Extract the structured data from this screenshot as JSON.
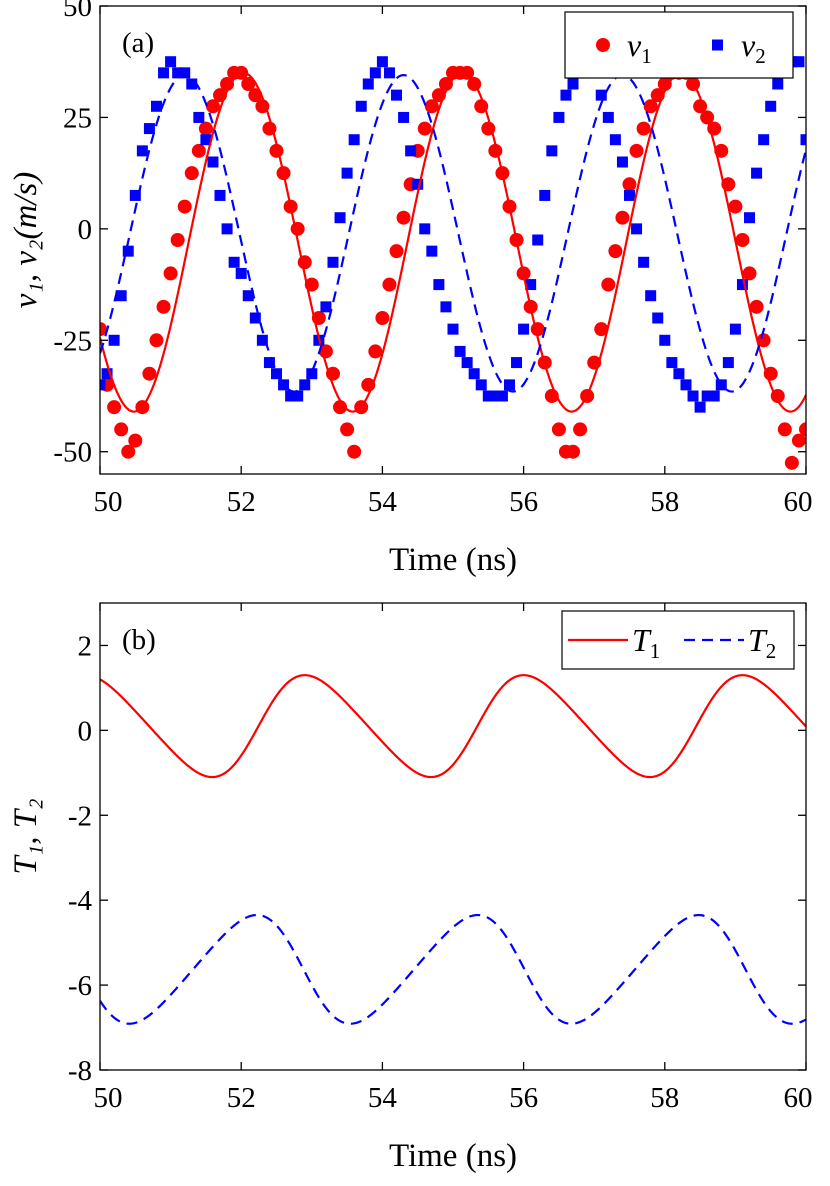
{
  "chart_data": [
    {
      "type": "line",
      "panel_label": "(a)",
      "xlabel": "Time (ns)",
      "ylabel": "v₁, v₂(m/s)",
      "xlim": [
        50,
        60
      ],
      "ylim": [
        -55,
        50
      ],
      "x_ticks": [
        50,
        52,
        54,
        56,
        58,
        60
      ],
      "x_tick_labels": [
        "50",
        "52",
        "54",
        "56",
        "58",
        "60"
      ],
      "y_ticks": [
        -50,
        -25,
        0,
        25,
        50
      ],
      "y_tick_labels": [
        "-50",
        "-25",
        "0",
        "25",
        "50"
      ],
      "legend_position": "top-right",
      "legend": [
        {
          "symbol": "v",
          "subscript": "1",
          "marker": "circle",
          "color": "#ff0000"
        },
        {
          "symbol": "v",
          "subscript": "2",
          "marker": "square",
          "color": "#0000ff"
        }
      ],
      "series": [
        {
          "name": "v1",
          "style": "markers",
          "marker": "circle",
          "color": "#ff0000",
          "x": [
            50.0,
            50.1,
            50.2,
            50.3,
            50.4,
            50.5,
            50.6,
            50.7,
            50.8,
            50.9,
            51.0,
            51.1,
            51.2,
            51.3,
            51.4,
            51.5,
            51.6,
            51.7,
            51.8,
            51.9,
            52.0,
            52.1,
            52.2,
            52.3,
            52.4,
            52.5,
            52.6,
            52.7,
            52.8,
            52.9,
            53.0,
            53.1,
            53.2,
            53.3,
            53.4,
            53.5,
            53.6,
            53.7,
            53.8,
            53.9,
            54.0,
            54.1,
            54.2,
            54.3,
            54.4,
            54.5,
            54.6,
            54.7,
            54.8,
            54.9,
            55.0,
            55.1,
            55.2,
            55.3,
            55.4,
            55.5,
            55.6,
            55.7,
            55.8,
            55.9,
            56.0,
            56.1,
            56.2,
            56.3,
            56.4,
            56.5,
            56.6,
            56.7,
            56.8,
            56.9,
            57.0,
            57.1,
            57.2,
            57.3,
            57.4,
            57.5,
            57.6,
            57.7,
            57.8,
            57.9,
            58.0,
            58.1,
            58.2,
            58.3,
            58.4,
            58.5,
            58.6,
            58.7,
            58.8,
            58.9,
            59.0,
            59.1,
            59.2,
            59.3,
            59.4,
            59.5,
            59.6,
            59.7,
            59.8,
            59.9,
            60.0
          ],
          "values": [
            -22.5,
            -35,
            -40,
            -45,
            -50,
            -47.5,
            -40,
            -32.5,
            -25,
            -17.5,
            -10,
            -2.5,
            5,
            12.5,
            17.5,
            22.5,
            27.5,
            30,
            32.5,
            35,
            35,
            32.5,
            30,
            27.5,
            22.5,
            17.5,
            12.5,
            5,
            0,
            -7.5,
            -12.5,
            -20,
            -27.5,
            -32.5,
            -40,
            -45,
            -50,
            -40,
            -35,
            -27.5,
            -20,
            -12.5,
            -5,
            2.5,
            10,
            17.5,
            22.5,
            27.5,
            30,
            32.5,
            35,
            35,
            35,
            32.5,
            27.5,
            22.5,
            17.5,
            12.5,
            5,
            -2.5,
            -10,
            -17.5,
            -22.5,
            -30,
            -37.5,
            -45,
            -50,
            -50,
            -45,
            -37.5,
            -30,
            -22.5,
            -12.5,
            -5,
            2.5,
            10,
            17.5,
            22.5,
            27.5,
            30,
            32.5,
            35,
            35,
            35,
            32.5,
            27.5,
            25,
            22.5,
            17.5,
            10,
            5,
            -2.5,
            -10,
            -17.5,
            -25,
            -32.5,
            -37.5,
            -45,
            -52.5,
            -47.5,
            -45
          ]
        },
        {
          "name": "v2",
          "style": "markers",
          "marker": "square",
          "color": "#0000ff",
          "x": [
            50.0,
            50.1,
            50.2,
            50.3,
            50.4,
            50.5,
            50.6,
            50.7,
            50.8,
            50.9,
            51.0,
            51.1,
            51.2,
            51.3,
            51.4,
            51.5,
            51.6,
            51.7,
            51.8,
            51.9,
            52.0,
            52.1,
            52.2,
            52.3,
            52.4,
            52.5,
            52.6,
            52.7,
            52.8,
            52.9,
            53.0,
            53.1,
            53.2,
            53.3,
            53.4,
            53.5,
            53.6,
            53.7,
            53.8,
            53.9,
            54.0,
            54.1,
            54.2,
            54.3,
            54.4,
            54.5,
            54.6,
            54.7,
            54.8,
            54.9,
            55.0,
            55.1,
            55.2,
            55.3,
            55.4,
            55.5,
            55.6,
            55.7,
            55.8,
            55.9,
            56.0,
            56.1,
            56.2,
            56.3,
            56.4,
            56.5,
            56.6,
            56.7,
            56.8,
            56.9,
            57.0,
            57.1,
            57.2,
            57.3,
            57.4,
            57.5,
            57.6,
            57.7,
            57.8,
            57.9,
            58.0,
            58.1,
            58.2,
            58.3,
            58.4,
            58.5,
            58.6,
            58.7,
            58.8,
            58.9,
            59.0,
            59.1,
            59.2,
            59.3,
            59.4,
            59.5,
            59.6,
            59.7,
            59.8,
            59.9,
            60.0
          ],
          "values": [
            -35,
            -32.5,
            -25,
            -15,
            -5,
            7.5,
            17.5,
            22.5,
            27.5,
            35,
            37.5,
            35,
            35,
            32.5,
            25,
            20,
            15,
            7.5,
            0,
            -7.5,
            -10,
            -15,
            -20,
            -25,
            -30,
            -32.5,
            -35,
            -37.5,
            -37.5,
            -35,
            -32.5,
            -25,
            -17.5,
            -7.5,
            2.5,
            12.5,
            20,
            27.5,
            32.5,
            35,
            37.5,
            35,
            30,
            25,
            17.5,
            10,
            0,
            -5,
            -12.5,
            -17.5,
            -22.5,
            -27.5,
            -30,
            -32.5,
            -35,
            -37.5,
            -37.5,
            -37.5,
            -35,
            -30,
            -22.5,
            -12.5,
            -2.5,
            7.5,
            17.5,
            25,
            30,
            32.5,
            37.5,
            37.5,
            35,
            30,
            25,
            20,
            15,
            7.5,
            0,
            -7.5,
            -15,
            -20,
            -25,
            -30,
            -32.5,
            -35,
            -37.5,
            -40,
            -37.5,
            -37.5,
            -35,
            -30,
            -22.5,
            -12.5,
            2.5,
            12.5,
            20,
            27.5,
            32.5,
            35,
            37.5,
            37.5,
            20
          ]
        },
        {
          "name": "v1 fit",
          "style": "solid-line",
          "color": "#ff0000",
          "function": {
            "offset": -3,
            "amplitude": 38,
            "period_ns": 3.1,
            "peak_time_ns": 52.03
          }
        },
        {
          "name": "v2 fit",
          "style": "dashed-line",
          "color": "#0000ff",
          "function": {
            "offset": -1,
            "amplitude": 35.5,
            "period_ns": 3.1,
            "peak_time_ns": 51.2
          }
        }
      ]
    },
    {
      "type": "line",
      "panel_label": "(b)",
      "xlabel": "Time (ns)",
      "ylabel": "T₁, T₂",
      "xlim": [
        50,
        60
      ],
      "ylim": [
        -8,
        3
      ],
      "x_ticks": [
        50,
        52,
        54,
        56,
        58,
        60
      ],
      "x_tick_labels": [
        "50",
        "52",
        "54",
        "56",
        "58",
        "60"
      ],
      "y_ticks": [
        -8,
        -6,
        -4,
        -2,
        0,
        2
      ],
      "y_tick_labels": [
        "-8",
        "-6",
        "-4",
        "-2",
        "0",
        "2"
      ],
      "legend_position": "top-right",
      "legend": [
        {
          "symbol": "T",
          "subscript": "1",
          "line": "solid",
          "color": "#ff0000"
        },
        {
          "symbol": "T",
          "subscript": "2",
          "line": "dashed",
          "color": "#0000ff"
        }
      ],
      "series": [
        {
          "name": "T1",
          "style": "solid-line",
          "color": "#ff0000",
          "function": {
            "offset": 0.1,
            "amplitude": 1.2,
            "period_ns": 3.1,
            "peak_time_ns": 53.02,
            "skew": 0.25
          }
        },
        {
          "name": "T2",
          "style": "dashed-line",
          "color": "#0000ff",
          "function": {
            "offset": -5.63,
            "amplitude": 1.28,
            "period_ns": 3.13,
            "peak_time_ns": 52.1,
            "skew": -0.25
          }
        }
      ]
    }
  ]
}
